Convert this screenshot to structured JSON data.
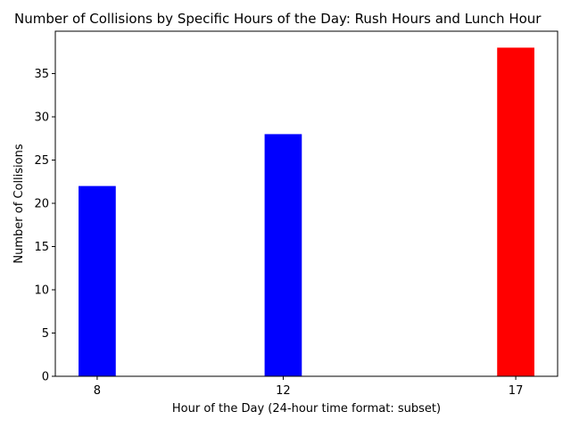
{
  "chart_data": {
    "type": "bar",
    "title": "Number of Collisions by Specific Hours of the Day: Rush Hours and Lunch Hour",
    "xlabel": "Hour of the Day (24-hour time format: subset)",
    "ylabel": "Number of Collisions",
    "x": [
      8,
      12,
      17
    ],
    "values": [
      22,
      28,
      38
    ],
    "bar_colors": [
      "#0000ff",
      "#0000ff",
      "#ff0000"
    ],
    "xlim": [
      7.1,
      17.9
    ],
    "ylim": [
      0,
      39.9
    ],
    "yticks": [
      0,
      5,
      10,
      15,
      20,
      25,
      30,
      35
    ],
    "grid": false,
    "legend": "none"
  }
}
